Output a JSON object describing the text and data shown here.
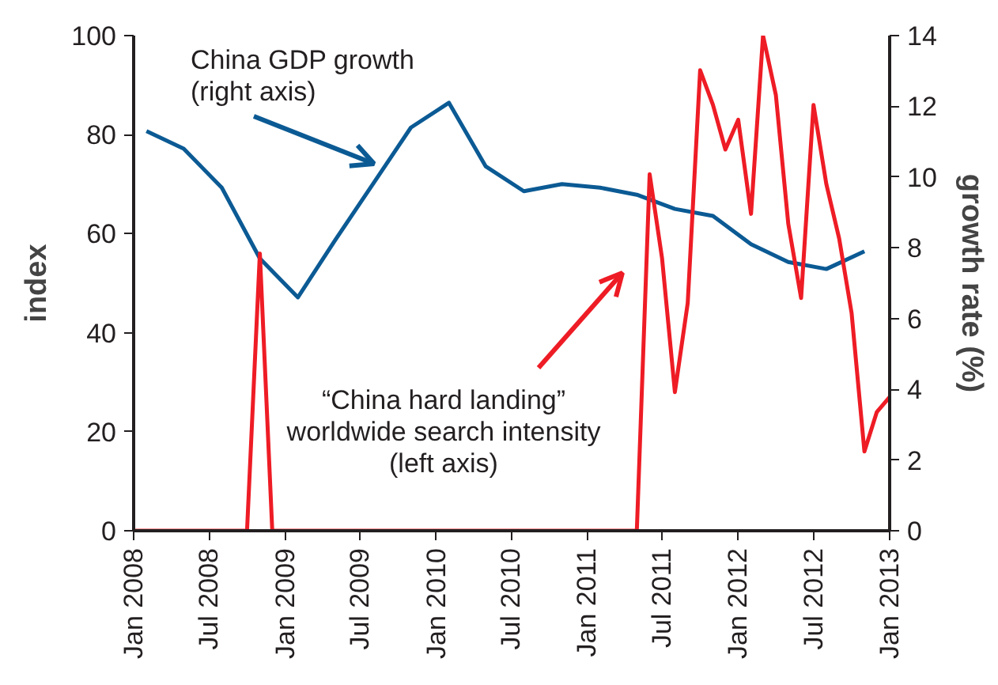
{
  "chart_data": {
    "type": "line",
    "ylabel": "index",
    "y2label": "growth rate (%)",
    "xlim": [
      "2008-01",
      "2013-01"
    ],
    "ylim": [
      0,
      100
    ],
    "yticks": [
      0,
      20,
      40,
      60,
      80,
      100
    ],
    "y2lim": [
      0,
      14
    ],
    "y2ticks": [
      0,
      2,
      4,
      6,
      8,
      10,
      12,
      14
    ],
    "xticks": [
      {
        "value": "2008-01",
        "label": "Jan 2008"
      },
      {
        "value": "2008-07",
        "label": "Jul 2008"
      },
      {
        "value": "2009-01",
        "label": "Jan 2009"
      },
      {
        "value": "2009-07",
        "label": "Jul 2009"
      },
      {
        "value": "2010-01",
        "label": "Jan 2010"
      },
      {
        "value": "2010-07",
        "label": "Jul 2010"
      },
      {
        "value": "2011-01",
        "label": "Jan 2011"
      },
      {
        "value": "2011-07",
        "label": "Jul 2011"
      },
      {
        "value": "2012-01",
        "label": "Jan 2012"
      },
      {
        "value": "2012-07",
        "label": "Jul 2012"
      },
      {
        "value": "2013-01",
        "label": "Jan 2013"
      }
    ],
    "grid": false,
    "series": [
      {
        "axis": "y2",
        "color": "#0b5a94",
        "x": [
          "2008-02",
          "2008-05",
          "2008-08",
          "2008-11",
          "2009-02",
          "2009-05",
          "2009-08",
          "2009-11",
          "2010-02",
          "2010-05",
          "2010-08",
          "2010-11",
          "2011-02",
          "2011-05",
          "2011-08",
          "2011-11",
          "2012-02",
          "2012-05",
          "2012-08",
          "2012-11"
        ],
        "values": [
          11.3,
          10.8,
          9.7,
          7.7,
          6.6,
          8.2,
          9.8,
          11.4,
          12.1,
          10.3,
          9.6,
          9.8,
          9.7,
          9.5,
          9.1,
          8.9,
          8.1,
          7.6,
          7.4,
          7.9
        ]
      },
      {
        "color": "#ee1c25",
        "x": [
          "2008-01",
          "2008-10",
          "2008-11",
          "2008-12",
          "2011-05",
          "2011-06",
          "2011-07",
          "2011-08",
          "2011-09",
          "2011-10",
          "2011-11",
          "2011-12",
          "2012-01",
          "2012-02",
          "2012-03",
          "2012-04",
          "2012-05",
          "2012-06",
          "2012-07",
          "2012-08",
          "2012-09",
          "2012-10",
          "2012-11",
          "2012-12",
          "2013-01"
        ],
        "values": [
          0,
          0,
          56,
          0,
          0,
          72,
          55,
          28,
          46,
          93,
          86,
          77,
          83,
          64,
          100,
          88,
          62,
          47,
          86,
          70,
          59,
          44,
          16,
          24,
          27
        ]
      }
    ],
    "annotations": [
      "China GDP growth\n(right axis)",
      "“China hard landing”\nworldwide search intensity\n(left axis)"
    ]
  }
}
